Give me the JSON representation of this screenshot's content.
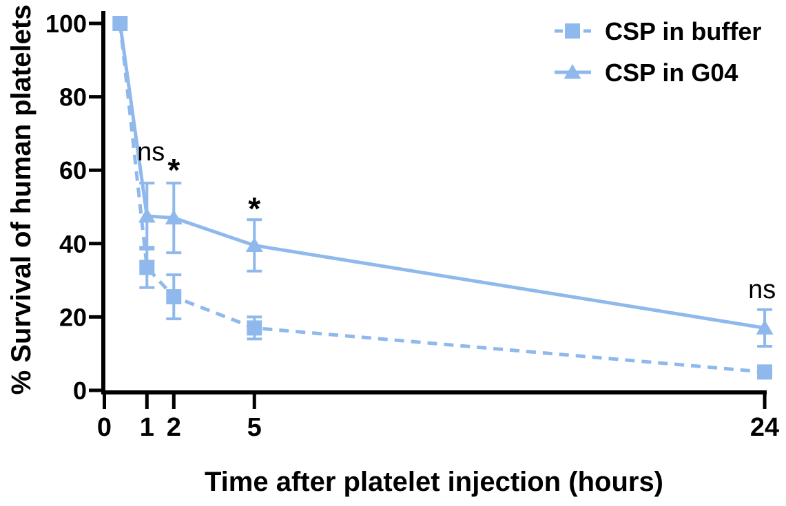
{
  "chart_data": {
    "type": "line",
    "title": "",
    "xlabel": "Time after platelet injection (hours)",
    "ylabel": "% Survival of human platelets",
    "x_tick_values": [
      0,
      1,
      2,
      5,
      24
    ],
    "x_tick_labels": [
      "0",
      "1",
      "2",
      "5",
      "24"
    ],
    "y_tick_values": [
      0,
      20,
      40,
      60,
      80,
      100
    ],
    "y_tick_labels": [
      "0",
      "20",
      "40",
      "60",
      "80",
      "100"
    ],
    "ylim": [
      0,
      100
    ],
    "grid": false,
    "legend_position": "top-right",
    "series": [
      {
        "name": "CSP in G04",
        "marker": "triangle",
        "line_style": "solid",
        "x": [
          0,
          1,
          2,
          5,
          24
        ],
        "values": [
          100,
          47.5,
          47,
          39.5,
          17
        ],
        "errors": [
          0,
          9,
          9.5,
          7,
          5
        ],
        "marker_at_first_point": false
      },
      {
        "name": "CSP in buffer",
        "marker": "square",
        "line_style": "dashed",
        "x": [
          0,
          1,
          2,
          5,
          24
        ],
        "values": [
          100,
          33.5,
          25.5,
          17,
          5
        ],
        "errors": [
          0,
          5.5,
          6,
          3,
          0
        ],
        "marker_at_first_point": true
      }
    ],
    "annotations": [
      {
        "text": "ns",
        "x": 1.15,
        "y": 64.5
      },
      {
        "text": "*",
        "x": 2.0,
        "y": 61.5
      },
      {
        "text": "*",
        "x": 5.0,
        "y": 51.0
      },
      {
        "text": "ns",
        "x": 23.9,
        "y": 27.0
      }
    ],
    "legend": [
      {
        "label": "CSP in buffer",
        "marker": "square",
        "line_style": "dashed"
      },
      {
        "label": "CSP in G04",
        "marker": "triangle",
        "line_style": "solid"
      }
    ]
  },
  "colors": {
    "series_blue": "#8FB9EC",
    "axis_black": "#000000",
    "text_black": "#000000",
    "background": "#ffffff"
  }
}
